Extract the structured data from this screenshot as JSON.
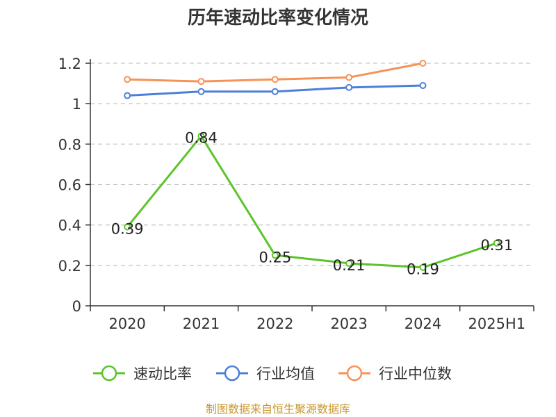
{
  "chart_data": {
    "type": "line",
    "title": "历年速动比率变化情况",
    "categories": [
      "2020",
      "2021",
      "2022",
      "2023",
      "2024",
      "2025H1"
    ],
    "ylim": [
      0,
      1.2
    ],
    "yticks": [
      {
        "value": 0,
        "label": "0"
      },
      {
        "value": 0.2,
        "label": "0.2"
      },
      {
        "value": 0.4,
        "label": "0.4"
      },
      {
        "value": 0.6,
        "label": "0.6"
      },
      {
        "value": 0.8,
        "label": "0.8"
      },
      {
        "value": 1,
        "label": "1"
      },
      {
        "value": 1.2,
        "label": "1.2"
      }
    ],
    "grid": "horizontal dashed",
    "legend_position": "bottom",
    "series": [
      {
        "name": "速动比率",
        "color": "#5cc42a",
        "values": [
          0.39,
          0.84,
          0.25,
          0.21,
          0.19,
          0.31
        ],
        "labels": [
          "0.39",
          "0.84",
          "0.25",
          "0.21",
          "0.19",
          "0.31"
        ]
      },
      {
        "name": "行业均值",
        "color": "#4d7fda",
        "values": [
          1.04,
          1.06,
          1.06,
          1.08,
          1.09,
          null
        ]
      },
      {
        "name": "行业中位数",
        "color": "#f79257",
        "values": [
          1.12,
          1.11,
          1.12,
          1.13,
          1.2,
          null
        ]
      }
    ]
  },
  "source": "制图数据来自恒生聚源数据库"
}
